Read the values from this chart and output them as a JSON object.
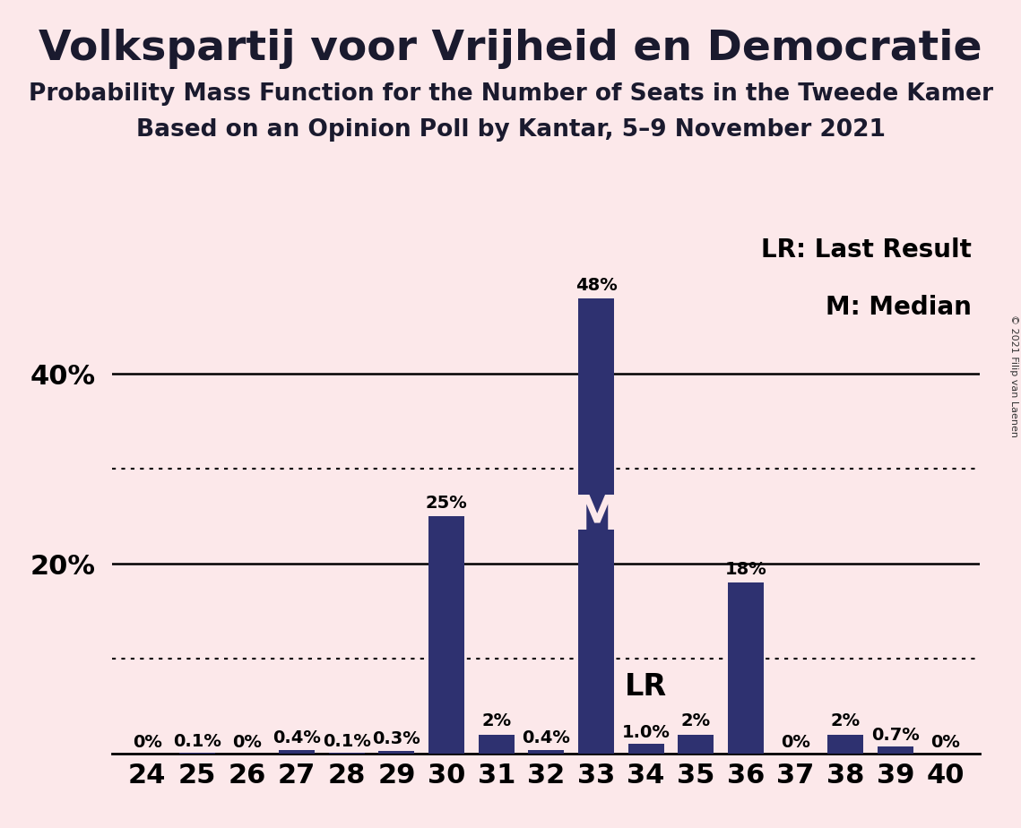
{
  "title": "Volkspartij voor Vrijheid en Democratie",
  "subtitle1": "Probability Mass Function for the Number of Seats in the Tweede Kamer",
  "subtitle2": "Based on an Opinion Poll by Kantar, 5–9 November 2021",
  "copyright": "© 2021 Filip van Laenen",
  "categories": [
    24,
    25,
    26,
    27,
    28,
    29,
    30,
    31,
    32,
    33,
    34,
    35,
    36,
    37,
    38,
    39,
    40
  ],
  "values": [
    0,
    0.1,
    0,
    0.4,
    0.1,
    0.3,
    25,
    2,
    0.4,
    48,
    1.0,
    2,
    18,
    0,
    2,
    0.7,
    0
  ],
  "labels": [
    "0%",
    "0.1%",
    "0%",
    "0.4%",
    "0.1%",
    "0.3%",
    "25%",
    "2%",
    "0.4%",
    "48%",
    "1.0%",
    "2%",
    "18%",
    "0%",
    "2%",
    "0.7%",
    "0%"
  ],
  "bar_color": "#2e3170",
  "background_color": "#fce8ea",
  "median_seat": 33,
  "lr_seat": 34,
  "solid_grid_values": [
    20,
    40
  ],
  "dotted_grid_values": [
    10,
    30
  ],
  "ylim": [
    0,
    55
  ],
  "legend_text1": "LR: Last Result",
  "legend_text2": "M: Median",
  "title_fontsize": 34,
  "subtitle_fontsize": 19,
  "label_fontsize": 14,
  "tick_fontsize": 22,
  "legend_fontsize": 20,
  "m_fontsize": 38,
  "lr_fontsize": 24
}
